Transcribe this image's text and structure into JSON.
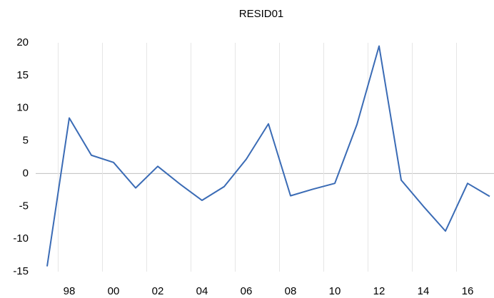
{
  "chart_data": {
    "type": "line",
    "title": "RESID01",
    "categories": [
      null,
      "98",
      null,
      "00",
      null,
      "02",
      null,
      "04",
      null,
      "06",
      null,
      "08",
      null,
      "10",
      null,
      "12",
      null,
      "14",
      null,
      "16",
      null
    ],
    "series": [
      {
        "name": "RESID01",
        "color": "#3a6bb5",
        "values": [
          -14.2,
          8.5,
          2.8,
          1.7,
          -2.2,
          1.1,
          -1.6,
          -4.1,
          -2.0,
          2.2,
          7.6,
          -3.4,
          -2.4,
          -1.5,
          7.5,
          19.5,
          -1.0,
          -5.0,
          -8.8,
          -1.5,
          -3.5
        ]
      }
    ],
    "ylim": [
      -15,
      20
    ],
    "yticks": [
      -15,
      -10,
      -5,
      0,
      5,
      10,
      15,
      20
    ],
    "grid": true
  }
}
